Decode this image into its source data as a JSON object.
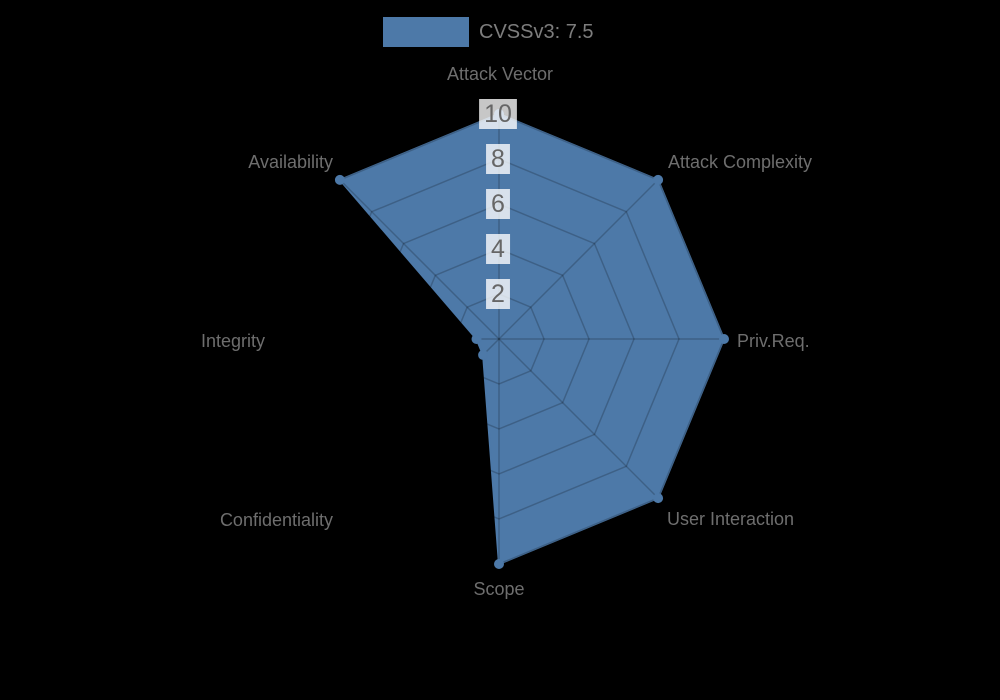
{
  "legend": {
    "items": [
      {
        "label": "CVSSv3: 7.5",
        "color": "#4d79a8"
      }
    ]
  },
  "chart_data": {
    "type": "radar",
    "title": "",
    "categories": [
      "Attack Vector",
      "Attack Complexity",
      "Priv.Req.",
      "User Interaction",
      "Scope",
      "Confidentiality",
      "Integrity",
      "Availability"
    ],
    "series": [
      {
        "name": "CVSSv3: 7.5",
        "values": [
          10,
          10,
          10,
          10,
          10,
          1,
          1,
          10
        ],
        "fill_color": "#4d79a8",
        "border_color": "#4d79a8",
        "point_color": "#4d79a8"
      }
    ],
    "scale": {
      "min": 0,
      "max": 10,
      "ticks": [
        2,
        4,
        6,
        8,
        10
      ]
    },
    "layout_hints": {
      "grid_shape": "polygon",
      "legend_position": "top",
      "axes_count": 8,
      "start_axis": "top",
      "direction": "clockwise"
    },
    "colors": {
      "background": "#000000",
      "grid_line": "rgba(0,0,0,0.2)",
      "axis_label": "#6e6e6e",
      "tick_text": "#666666",
      "tick_backdrop": "rgba(255,255,255,0.78)"
    }
  }
}
